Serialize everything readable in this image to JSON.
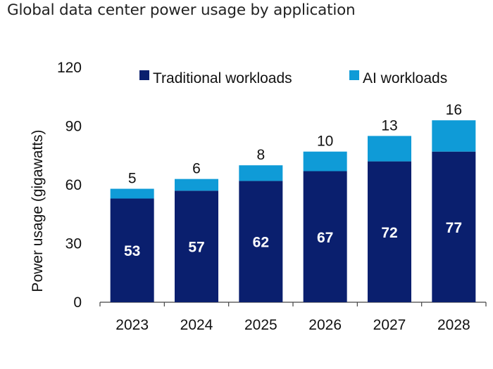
{
  "header": {
    "title": "Global data center power usage by application"
  },
  "colors": {
    "traditional": "#0a1f6e",
    "ai": "#0f9bd7",
    "axis": "#444444",
    "text": "#111111"
  },
  "chart_data": {
    "type": "bar",
    "stacked": true,
    "title": "Global data center power usage by application",
    "xlabel": "",
    "ylabel": "Power usage (gigawatts)",
    "ylim": [
      0,
      120
    ],
    "yticks": [
      0,
      30,
      60,
      90,
      120
    ],
    "categories": [
      "2023",
      "2024",
      "2025",
      "2026",
      "2027",
      "2028"
    ],
    "series": [
      {
        "name": "Traditional workloads",
        "values": [
          53,
          57,
          62,
          67,
          72,
          77
        ]
      },
      {
        "name": "AI workloads",
        "values": [
          5,
          6,
          8,
          10,
          13,
          16
        ]
      }
    ],
    "legend_position": "top"
  }
}
